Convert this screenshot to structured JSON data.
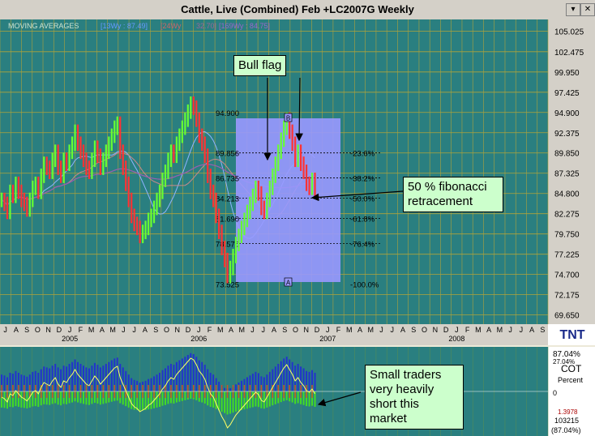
{
  "window": {
    "title": "Cattle, Live (Combined) Feb +LC2007G Weekly",
    "buttons": [
      "▾",
      "✕"
    ]
  },
  "indicator_legend": {
    "label": "MOVING AVERAGES",
    "items": [
      {
        "text": "[13Wy : 87.49]",
        "color": "#6699ff"
      },
      {
        "text": "[24Wy",
        "color": "#cc6666"
      },
      {
        "text": "32.70]",
        "color": "#996699"
      },
      {
        "text": "[169Wy : 84.75]",
        "color": "#9966cc"
      }
    ]
  },
  "annotations": {
    "bull_flag": "Bull flag",
    "fib_line1": "50 % fibonacci",
    "fib_line2": "retracement",
    "cot_line1": "Small traders",
    "cot_line2": "very heavily",
    "cot_line3": "short this",
    "cot_line4": "market"
  },
  "logo": "TNT",
  "cot_panel": {
    "top_value": "87.04%",
    "label_cot": "COT",
    "label_pct": "Percent",
    "zero": "0",
    "upper_small": "27.04%",
    "lower_small": "1.3978",
    "lower_value": "103215",
    "bottom_value": "(87.04%)"
  },
  "colors": {
    "plot_bg": "#2a7f80",
    "grid": "#b0a33a",
    "up_bar": "#66ff33",
    "down_bar": "#ff3333",
    "fib_box": "#9999ff"
  },
  "chart_data": {
    "type": "bar",
    "title": "Cattle, Live (Combined) Feb +LC2007G Weekly",
    "y_ticks": [
      "105.025",
      "102.475",
      "99.950",
      "97.425",
      "94.900",
      "92.375",
      "89.850",
      "87.325",
      "84.800",
      "82.275",
      "79.750",
      "77.225",
      "74.700",
      "72.175",
      "69.650"
    ],
    "ylim": [
      68.5,
      106.5
    ],
    "x_month_labels": [
      "J",
      "A",
      "S",
      "O",
      "N",
      "D",
      "J",
      "F",
      "M",
      "A",
      "M",
      "J",
      "J",
      "A",
      "S",
      "O",
      "N",
      "D",
      "J",
      "F",
      "M",
      "A",
      "M",
      "J",
      "J",
      "A",
      "S",
      "O",
      "N",
      "D",
      "J",
      "F",
      "M",
      "A",
      "M",
      "J",
      "J",
      "A",
      "S",
      "O",
      "N",
      "D",
      "J",
      "F",
      "M",
      "A",
      "M",
      "J",
      "J",
      "A",
      "S"
    ],
    "x_year_labels": [
      {
        "label": "2005",
        "month_index": 6
      },
      {
        "label": "2006",
        "month_index": 18
      },
      {
        "label": "2007",
        "month_index": 30
      },
      {
        "label": "2008",
        "month_index": 42
      }
    ],
    "fibonacci": {
      "price_labels": [
        "94.900",
        "89.856",
        "86.735",
        "84.213",
        "81.690",
        "78.570",
        "73.525"
      ],
      "prices": [
        94.9,
        89.856,
        86.735,
        84.213,
        81.69,
        78.57,
        73.525
      ],
      "pct_labels": [
        "-23.6%",
        "-38.2%",
        "-50.0%",
        "-61.8%",
        "-76.4%",
        "-100.0%"
      ],
      "pct_prices": [
        89.856,
        86.735,
        84.213,
        81.69,
        78.57,
        73.525
      ],
      "point_a": "A",
      "point_b": "B"
    },
    "series": [
      {
        "name": "Price (weekly bars)",
        "values": [
          84,
          83.5,
          82.5,
          85,
          84.5,
          86,
          85,
          84,
          83.5,
          82.8,
          84,
          85.5,
          86,
          85,
          87,
          88.5,
          88,
          87.5,
          89,
          90,
          88,
          87,
          89,
          88.5,
          90,
          91,
          92.5,
          91,
          90,
          89,
          88,
          87.5,
          89,
          90.5,
          89.5,
          88,
          89,
          90,
          91,
          92,
          93,
          93.5,
          90,
          88,
          86,
          84,
          82,
          81,
          80.5,
          79.5,
          80,
          80.5,
          81.5,
          82,
          83,
          84,
          85,
          86.5,
          87.5,
          89,
          90,
          89.5,
          91,
          92,
          93,
          94,
          95,
          96,
          95.5,
          94,
          92,
          91,
          89.5,
          87,
          85,
          84,
          82,
          80,
          78,
          76.5,
          74.5,
          75.5,
          77,
          78.5,
          79.5,
          80.5,
          81.5,
          82.5,
          83.5,
          84.5,
          85.5,
          84.8,
          83,
          82.5,
          84,
          85.5,
          87,
          88.5,
          90,
          91.5,
          93,
          94,
          92.5,
          91,
          89,
          90,
          88.5,
          87.5,
          86,
          85.5,
          86.5,
          85
        ]
      }
    ]
  }
}
